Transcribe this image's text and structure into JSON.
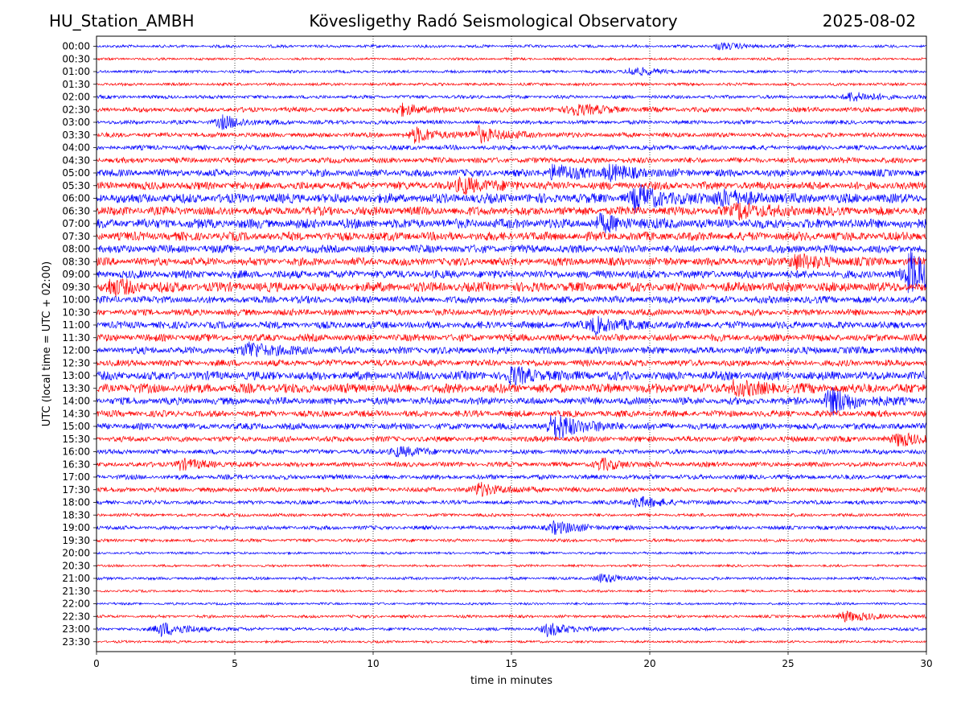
{
  "header": {
    "station": "HU_Station_AMBH",
    "observatory": "Kövesligethy Radó Seismological Observatory",
    "date": "2025-08-02"
  },
  "chart_data": {
    "type": "line",
    "title": "Kövesligethy Radó Seismological Observatory",
    "xlabel": "time in minutes",
    "ylabel": "UTC (local time = UTC + 02:00)",
    "xlim": [
      0,
      30
    ],
    "xticks": [
      0,
      5,
      10,
      15,
      20,
      25,
      30
    ],
    "grid": "vertical dotted lines at 5-minute intervals",
    "rows": [
      "00:00",
      "00:30",
      "01:00",
      "01:30",
      "02:00",
      "02:30",
      "03:00",
      "03:30",
      "04:00",
      "04:30",
      "05:00",
      "05:30",
      "06:00",
      "06:30",
      "07:00",
      "07:30",
      "08:00",
      "08:30",
      "09:00",
      "09:30",
      "10:00",
      "10:30",
      "11:00",
      "11:30",
      "12:00",
      "12:30",
      "13:00",
      "13:30",
      "14:00",
      "14:30",
      "15:00",
      "15:30",
      "16:00",
      "16:30",
      "17:00",
      "17:30",
      "18:00",
      "18:30",
      "19:00",
      "19:30",
      "20:00",
      "20:30",
      "21:00",
      "21:30",
      "22:00",
      "22:30",
      "23:00",
      "23:30"
    ],
    "colors": {
      "even_rows": "#0000ff",
      "odd_rows": "#ff0000"
    },
    "row_noise_level": [
      0.18,
      0.15,
      0.18,
      0.18,
      0.22,
      0.3,
      0.25,
      0.3,
      0.3,
      0.35,
      0.45,
      0.5,
      0.6,
      0.55,
      0.6,
      0.55,
      0.5,
      0.5,
      0.5,
      0.6,
      0.45,
      0.4,
      0.45,
      0.45,
      0.45,
      0.4,
      0.55,
      0.6,
      0.45,
      0.4,
      0.4,
      0.35,
      0.3,
      0.3,
      0.3,
      0.3,
      0.25,
      0.2,
      0.25,
      0.2,
      0.15,
      0.15,
      0.18,
      0.15,
      0.15,
      0.18,
      0.2,
      0.15
    ],
    "events": [
      {
        "row": "00:00",
        "minute": 22.5,
        "amplitude": 0.5
      },
      {
        "row": "01:00",
        "minute": 19.3,
        "amplitude": 0.7
      },
      {
        "row": "02:00",
        "minute": 27.2,
        "amplitude": 0.8
      },
      {
        "row": "02:30",
        "minute": 11.0,
        "amplitude": 0.8
      },
      {
        "row": "02:30",
        "minute": 17.2,
        "amplitude": 1.0
      },
      {
        "row": "03:00",
        "minute": 4.5,
        "amplitude": 1.0
      },
      {
        "row": "03:30",
        "minute": 11.5,
        "amplitude": 1.1
      },
      {
        "row": "03:30",
        "minute": 13.8,
        "amplitude": 1.1
      },
      {
        "row": "05:00",
        "minute": 16.5,
        "amplitude": 1.2
      },
      {
        "row": "05:00",
        "minute": 18.5,
        "amplitude": 1.0
      },
      {
        "row": "05:30",
        "minute": 13.2,
        "amplitude": 1.2
      },
      {
        "row": "06:00",
        "minute": 19.5,
        "amplitude": 1.8
      },
      {
        "row": "06:00",
        "minute": 22.5,
        "amplitude": 1.2
      },
      {
        "row": "06:30",
        "minute": 23.2,
        "amplitude": 1.2
      },
      {
        "row": "07:00",
        "minute": 18.2,
        "amplitude": 1.0
      },
      {
        "row": "08:30",
        "minute": 25.2,
        "amplitude": 1.2
      },
      {
        "row": "09:00",
        "minute": 29.4,
        "amplitude": 3.5
      },
      {
        "row": "09:30",
        "minute": 0.5,
        "amplitude": 1.0
      },
      {
        "row": "11:00",
        "minute": 18.0,
        "amplitude": 1.2
      },
      {
        "row": "12:00",
        "minute": 5.5,
        "amplitude": 1.2
      },
      {
        "row": "13:00",
        "minute": 15.0,
        "amplitude": 1.1
      },
      {
        "row": "13:30",
        "minute": 23.0,
        "amplitude": 1.0
      },
      {
        "row": "14:00",
        "minute": 26.5,
        "amplitude": 2.0
      },
      {
        "row": "15:00",
        "minute": 16.5,
        "amplitude": 2.2
      },
      {
        "row": "15:30",
        "minute": 29.0,
        "amplitude": 1.0
      },
      {
        "row": "16:00",
        "minute": 10.8,
        "amplitude": 0.8
      },
      {
        "row": "16:30",
        "minute": 3.0,
        "amplitude": 0.8
      },
      {
        "row": "16:30",
        "minute": 18.2,
        "amplitude": 0.8
      },
      {
        "row": "17:30",
        "minute": 13.8,
        "amplitude": 1.0
      },
      {
        "row": "18:00",
        "minute": 19.5,
        "amplitude": 0.9
      },
      {
        "row": "19:00",
        "minute": 16.5,
        "amplitude": 1.0
      },
      {
        "row": "21:00",
        "minute": 18.2,
        "amplitude": 0.7
      },
      {
        "row": "22:30",
        "minute": 27.0,
        "amplitude": 0.9
      },
      {
        "row": "23:00",
        "minute": 2.3,
        "amplitude": 1.2
      },
      {
        "row": "23:00",
        "minute": 16.3,
        "amplitude": 1.0
      }
    ]
  }
}
